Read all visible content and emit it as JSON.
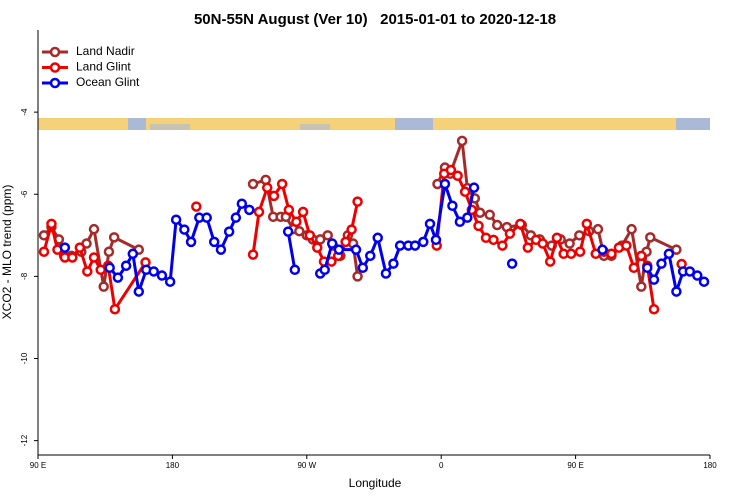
{
  "chart_data": {
    "type": "line",
    "title": "50N-55N August (Ver 10)   2015-01-01 to 2020-12-18",
    "x_label": "Longitude",
    "y_label": "XCO2 - MLO trend (ppm)",
    "xlim": [
      90,
      540
    ],
    "xticks": [
      {
        "value": 90,
        "label": "90 E"
      },
      180,
      {
        "value": 270,
        "label": "90 W"
      },
      {
        "value": 360,
        "label": "0"
      },
      {
        "value": 450,
        "label": "90 E"
      },
      {
        "value": 540,
        "label": "180"
      }
    ],
    "ylim": [
      -12.35,
      -2
    ],
    "yticks": [
      -4,
      -6,
      -8,
      -10,
      -12
    ],
    "legend": "upper left",
    "series": [
      {
        "name": "Land Nadir",
        "color": "#a52a2a",
        "x": [
          94,
          99,
          104,
          107.5,
          112.5,
          119,
          122.5,
          127.5,
          134,
          137.5,
          141,
          157.5,
          null,
          234,
          242.5,
          247.5,
          252.5,
          256,
          261,
          265,
          270,
          274,
          279,
          284,
          287.5,
          292.5,
          297.5,
          301,
          304,
          null,
          357.5,
          362.5,
          366,
          374,
          377.5,
          382.5,
          386,
          392.5,
          397.5,
          404,
          414,
          420,
          426,
          434,
          440,
          446,
          452.5,
          459,
          465,
          469,
          474,
          481,
          487.5,
          494,
          497.5,
          500,
          517.5
        ],
        "values": [
          -7.0,
          -6.8,
          -7.1,
          -7.5,
          -7.5,
          -7.4,
          -7.2,
          -6.85,
          -8.25,
          -7.4,
          -7.05,
          -7.35,
          null,
          -5.75,
          -5.65,
          -6.55,
          -6.55,
          -6.55,
          -6.85,
          -6.9,
          -7.0,
          -7.1,
          -7.1,
          -7.0,
          -7.25,
          -7.5,
          -7.0,
          -7.2,
          -8.0,
          null,
          -5.75,
          -5.35,
          -5.5,
          -4.7,
          -5.85,
          -6.1,
          -6.45,
          -6.5,
          -6.75,
          -6.8,
          -6.75,
          -7.0,
          -7.1,
          -7.25,
          -7.1,
          -7.2,
          -7.0,
          -6.9,
          -6.85,
          -7.5,
          -7.5,
          -7.25,
          -6.85,
          -8.25,
          -7.4,
          -7.05,
          -7.35
        ]
      },
      {
        "name": "Land Glint",
        "color": "#ee0000",
        "x": [
          94,
          99,
          103,
          108,
          113,
          118,
          123,
          127.5,
          132,
          137,
          141.5,
          162,
          null,
          196,
          null,
          234,
          238,
          243.5,
          248,
          253.5,
          258,
          263,
          267.5,
          272,
          277,
          281.5,
          286.5,
          291,
          296,
          300,
          304,
          null,
          357,
          362,
          366.5,
          371,
          376,
          380.5,
          385,
          390,
          395,
          401,
          406,
          413,
          418,
          423.5,
          428,
          433,
          437.5,
          442,
          447,
          453,
          457.5,
          463.5,
          469,
          474,
          479,
          484,
          489,
          494,
          498,
          502.5,
          null,
          521
        ],
        "values": [
          -7.4,
          -6.72,
          -7.35,
          -7.54,
          -7.54,
          -7.3,
          -7.88,
          -7.54,
          -7.84,
          -7.74,
          -8.8,
          -7.66,
          null,
          -6.3,
          null,
          -7.47,
          -6.43,
          -5.84,
          -6.04,
          -5.75,
          -6.38,
          -6.67,
          -6.43,
          -7.0,
          -7.3,
          -7.64,
          -7.64,
          -7.5,
          -7.16,
          -6.86,
          -6.18,
          null,
          -7.25,
          -5.5,
          -5.41,
          -5.55,
          -5.94,
          -6.38,
          -6.77,
          -7.06,
          -7.11,
          -7.25,
          -6.96,
          -6.72,
          -7.3,
          -7.11,
          -7.2,
          -7.64,
          -7.06,
          -7.45,
          -7.45,
          -7.4,
          -6.72,
          -7.45,
          -7.4,
          -7.45,
          -7.3,
          -7.25,
          -7.79,
          -7.5,
          -7.74,
          -8.8,
          null,
          -7.7
        ]
      },
      {
        "name": "Ocean Glint",
        "color": "#0000ee",
        "x": [
          108,
          null,
          138,
          143.5,
          149,
          153.5,
          157.5,
          162.5,
          167.5,
          173,
          178.5,
          182.5,
          188,
          192.5,
          198,
          203,
          208,
          212.5,
          218,
          222.5,
          226.5,
          231.5,
          null,
          257.5,
          262,
          null,
          279,
          282,
          287,
          291.5,
          303,
          307.5,
          312.5,
          317.5,
          323,
          328,
          332.5,
          338,
          342.5,
          348,
          352.5,
          356.5,
          362.5,
          367.5,
          372.5,
          377.5,
          382,
          null,
          407.5,
          null,
          468,
          null,
          498,
          502.5,
          507.5,
          512.5,
          517.5,
          522,
          526.5,
          531.5,
          536
        ],
        "values": [
          -7.3,
          null,
          -7.79,
          -8.03,
          -7.74,
          -7.45,
          -8.37,
          -7.84,
          -7.88,
          -7.98,
          -8.13,
          -6.62,
          -6.86,
          -7.16,
          -6.57,
          -6.57,
          -7.16,
          -7.35,
          -6.91,
          -6.57,
          -6.23,
          -6.38,
          null,
          -6.91,
          -7.84,
          null,
          -7.93,
          -7.84,
          -7.2,
          -7.35,
          -7.35,
          -7.79,
          -7.5,
          -7.06,
          -7.93,
          -7.69,
          -7.25,
          -7.25,
          -7.25,
          -7.16,
          -6.72,
          -7.11,
          -5.75,
          -6.28,
          -6.67,
          -6.57,
          -5.84,
          null,
          -7.69,
          null,
          -7.35,
          null,
          -7.79,
          -8.08,
          -7.69,
          -7.45,
          -8.37,
          -7.88,
          -7.88,
          -7.98,
          -8.13
        ]
      }
    ]
  }
}
